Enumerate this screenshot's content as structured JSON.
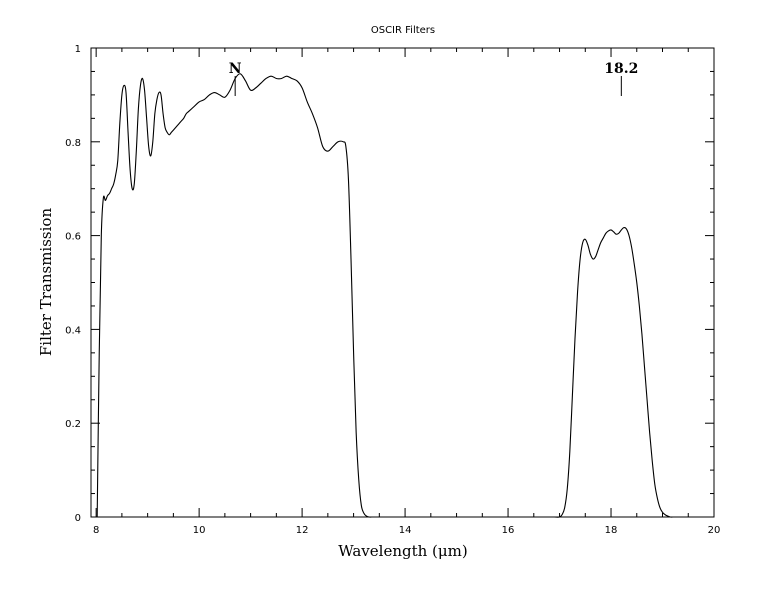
{
  "chart_data": {
    "type": "line",
    "title": "OSCIR Filters",
    "xlabel": "Wavelength (μm)",
    "ylabel": "Filter Transmission",
    "xlim": [
      7.9,
      20
    ],
    "ylim": [
      0,
      1
    ],
    "xticks": [
      "8",
      "10",
      "12",
      "14",
      "16",
      "18",
      "20"
    ],
    "yticks": [
      "0",
      "0.2",
      "0.4",
      "0.6",
      "0.8",
      "1"
    ],
    "grid": false,
    "annotations": [
      {
        "label": "N",
        "x": 10.7
      },
      {
        "label": "18.2",
        "x": 18.2
      }
    ],
    "series": [
      {
        "x": [
          8.02,
          8.06,
          8.1,
          8.14,
          8.18,
          8.22,
          8.26,
          8.3,
          8.34,
          8.38,
          8.42,
          8.46,
          8.5,
          8.54,
          8.58,
          8.62,
          8.66,
          8.7,
          8.74,
          8.78,
          8.82,
          8.86,
          8.9,
          8.94,
          8.98,
          9.02,
          9.06,
          9.1,
          9.14,
          9.18,
          9.22,
          9.26,
          9.3,
          9.34,
          9.38,
          9.42,
          9.46,
          9.5,
          9.54,
          9.58,
          9.62,
          9.66,
          9.7,
          9.75,
          9.8,
          9.85,
          9.9,
          10.0,
          10.1,
          10.2,
          10.3,
          10.4,
          10.5,
          10.6,
          10.7,
          10.8,
          10.9,
          11.0,
          11.1,
          11.2,
          11.3,
          11.4,
          11.5,
          11.6,
          11.7,
          11.8,
          11.9,
          12.0,
          12.1,
          12.2,
          12.3,
          12.4,
          12.5,
          12.6,
          12.7,
          12.8,
          12.85,
          12.9,
          12.95,
          13.0,
          13.05,
          13.1,
          13.15,
          13.2,
          13.25,
          13.3,
          13.35,
          13.4,
          13.45,
          13.5,
          13.55,
          13.6,
          13.65,
          13.7,
          13.8
        ],
        "y": [
          0.0,
          0.35,
          0.6,
          0.68,
          0.675,
          0.685,
          0.69,
          0.7,
          0.71,
          0.73,
          0.76,
          0.84,
          0.9,
          0.92,
          0.905,
          0.82,
          0.74,
          0.7,
          0.71,
          0.78,
          0.87,
          0.92,
          0.935,
          0.91,
          0.85,
          0.79,
          0.77,
          0.8,
          0.86,
          0.89,
          0.905,
          0.9,
          0.86,
          0.83,
          0.82,
          0.815,
          0.82,
          0.825,
          0.83,
          0.835,
          0.84,
          0.845,
          0.85,
          0.86,
          0.865,
          0.87,
          0.875,
          0.885,
          0.89,
          0.9,
          0.905,
          0.9,
          0.895,
          0.91,
          0.935,
          0.945,
          0.93,
          0.91,
          0.915,
          0.925,
          0.935,
          0.94,
          0.935,
          0.935,
          0.94,
          0.935,
          0.93,
          0.915,
          0.885,
          0.86,
          0.83,
          0.79,
          0.78,
          0.79,
          0.8,
          0.8,
          0.79,
          0.72,
          0.55,
          0.35,
          0.18,
          0.08,
          0.025,
          0.008,
          0.002,
          0.0,
          0.0,
          0.0,
          0.0,
          0.0,
          0.0,
          0.0,
          0.0,
          0.0,
          0.0
        ]
      },
      {
        "x": [
          16.8,
          16.9,
          17.0,
          17.05,
          17.1,
          17.15,
          17.2,
          17.25,
          17.3,
          17.35,
          17.4,
          17.45,
          17.5,
          17.55,
          17.6,
          17.65,
          17.7,
          17.75,
          17.8,
          17.85,
          17.9,
          17.95,
          18.0,
          18.05,
          18.1,
          18.15,
          18.2,
          18.25,
          18.3,
          18.35,
          18.4,
          18.45,
          18.5,
          18.55,
          18.6,
          18.65,
          18.7,
          18.75,
          18.8,
          18.85,
          18.9,
          18.95,
          19.0,
          19.05,
          19.1,
          19.15,
          19.2,
          19.25,
          19.3,
          19.4,
          19.5,
          19.6,
          19.7,
          19.8
        ],
        "y": [
          0.0,
          0.0,
          0.0,
          0.005,
          0.02,
          0.06,
          0.14,
          0.26,
          0.38,
          0.48,
          0.55,
          0.585,
          0.592,
          0.58,
          0.56,
          0.55,
          0.555,
          0.57,
          0.585,
          0.595,
          0.605,
          0.61,
          0.612,
          0.608,
          0.603,
          0.605,
          0.612,
          0.617,
          0.614,
          0.6,
          0.575,
          0.54,
          0.5,
          0.45,
          0.39,
          0.32,
          0.25,
          0.18,
          0.12,
          0.07,
          0.04,
          0.02,
          0.01,
          0.005,
          0.002,
          0.0,
          0.0,
          0.0,
          0.0,
          0.0,
          0.0,
          0.0,
          0.0,
          0.0
        ]
      }
    ]
  }
}
